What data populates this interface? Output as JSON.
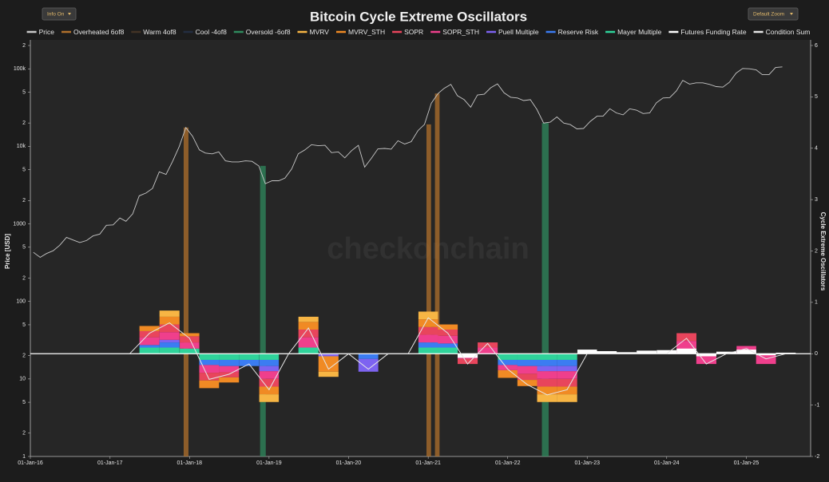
{
  "controls": {
    "info": "Info On",
    "zoom": "Default Zoom"
  },
  "chart_data": {
    "type": "oscillator",
    "title": "Bitcoin Cycle Extreme Oscillators",
    "watermark": "checkonchain",
    "y_label": "Price [USD]",
    "y2_label": "Cycle Extreme Oscillators",
    "grid": false,
    "log_y": true,
    "xlim": [
      "2016-01-01",
      "2025-10-23"
    ],
    "xticks": [
      {
        "value": "2016-01-01",
        "label": "01-Jan-16"
      },
      {
        "value": "2017-01-01",
        "label": "01-Jan-17"
      },
      {
        "value": "2018-01-01",
        "label": "01-Jan-18"
      },
      {
        "value": "2019-01-01",
        "label": "01-Jan-19"
      },
      {
        "value": "2020-01-01",
        "label": "01-Jan-20"
      },
      {
        "value": "2021-01-01",
        "label": "01-Jan-21"
      },
      {
        "value": "2022-01-01",
        "label": "01-Jan-22"
      },
      {
        "value": "2023-01-01",
        "label": "01-Jan-23"
      },
      {
        "value": "2024-01-01",
        "label": "01-Jan-24"
      },
      {
        "value": "2025-01-01",
        "label": "01-Jan-25"
      }
    ],
    "ylim": [
      1,
      200000
    ],
    "yticks": [
      1,
      2,
      5,
      10,
      {
        "value": 20,
        "label": "2"
      },
      {
        "value": 50,
        "label": "5"
      },
      100,
      {
        "value": 200,
        "label": "2"
      },
      {
        "value": 500,
        "label": "5"
      },
      1000,
      {
        "value": 2000,
        "label": "2"
      },
      {
        "value": 5000,
        "label": "5"
      },
      {
        "value": 10000,
        "label": "10k"
      },
      {
        "value": 20000,
        "label": "2"
      },
      {
        "value": 50000,
        "label": "5"
      },
      {
        "value": 100000,
        "label": "100k"
      },
      {
        "value": 200000,
        "label": "2"
      }
    ],
    "y2lim": [
      -2,
      6
    ],
    "y2ticks": [
      -2,
      -1,
      0,
      1,
      2,
      3,
      4,
      5,
      6
    ],
    "x": [
      "2016-01-01",
      "2016-04-01",
      "2016-07-01",
      "2016-10-01",
      "2017-01-01",
      "2017-04-01",
      "2017-07-01",
      "2017-10-01",
      "2018-01-01",
      "2018-04-01",
      "2018-07-01",
      "2018-10-01",
      "2019-01-01",
      "2019-04-01",
      "2019-07-01",
      "2019-10-01",
      "2020-01-01",
      "2020-04-01",
      "2020-07-01",
      "2020-10-01",
      "2021-01-01",
      "2021-04-01",
      "2021-07-01",
      "2021-10-01",
      "2022-01-01",
      "2022-04-01",
      "2022-07-01",
      "2022-10-01",
      "2023-01-01",
      "2023-04-01",
      "2023-07-01",
      "2023-10-01",
      "2024-01-01",
      "2024-04-01",
      "2024-07-01",
      "2024-10-01",
      "2025-01-01",
      "2025-04-01",
      "2025-07-01"
    ],
    "series": [
      {
        "name": "Price",
        "color": "#c8c8c8",
        "style": "line",
        "axis": "y",
        "x": [
          "2016-01-15",
          "2016-02-15",
          "2016-03-15",
          "2016-04-15",
          "2016-05-15",
          "2016-06-15",
          "2016-07-15",
          "2016-08-15",
          "2016-09-15",
          "2016-10-15",
          "2016-11-15",
          "2016-12-15",
          "2017-01-15",
          "2017-02-15",
          "2017-03-15",
          "2017-04-15",
          "2017-05-15",
          "2017-06-15",
          "2017-07-15",
          "2017-08-15",
          "2017-09-15",
          "2017-10-15",
          "2017-11-15",
          "2017-12-15",
          "2018-01-15",
          "2018-02-15",
          "2018-03-15",
          "2018-04-15",
          "2018-05-15",
          "2018-06-15",
          "2018-07-15",
          "2018-08-15",
          "2018-09-15",
          "2018-10-15",
          "2018-11-15",
          "2018-12-15",
          "2019-01-15",
          "2019-02-15",
          "2019-03-15",
          "2019-04-15",
          "2019-05-15",
          "2019-06-15",
          "2019-07-15",
          "2019-08-15",
          "2019-09-15",
          "2019-10-15",
          "2019-11-15",
          "2019-12-15",
          "2020-01-15",
          "2020-02-15",
          "2020-03-15",
          "2020-04-15",
          "2020-05-15",
          "2020-06-15",
          "2020-07-15",
          "2020-08-15",
          "2020-09-15",
          "2020-10-15",
          "2020-11-15",
          "2020-12-15",
          "2021-01-15",
          "2021-02-15",
          "2021-03-15",
          "2021-04-15",
          "2021-05-15",
          "2021-06-15",
          "2021-07-15",
          "2021-08-15",
          "2021-09-15",
          "2021-10-15",
          "2021-11-15",
          "2021-12-15",
          "2022-01-15",
          "2022-02-15",
          "2022-03-15",
          "2022-04-15",
          "2022-05-15",
          "2022-06-15",
          "2022-07-15",
          "2022-08-15",
          "2022-09-15",
          "2022-10-15",
          "2022-11-15",
          "2022-12-15",
          "2023-01-15",
          "2023-02-15",
          "2023-03-15",
          "2023-04-15",
          "2023-05-15",
          "2023-06-15",
          "2023-07-15",
          "2023-08-15",
          "2023-09-15",
          "2023-10-15",
          "2023-11-15",
          "2023-12-15",
          "2024-01-15",
          "2024-02-15",
          "2024-03-15",
          "2024-04-15",
          "2024-05-15",
          "2024-06-15",
          "2024-07-15",
          "2024-08-15",
          "2024-09-15",
          "2024-10-15",
          "2024-11-15",
          "2024-12-15",
          "2025-01-15",
          "2025-02-15",
          "2025-03-15",
          "2025-04-15",
          "2025-05-15",
          "2025-06-15"
        ],
        "values": [
          430,
          370,
          415,
          450,
          530,
          670,
          620,
          575,
          610,
          700,
          740,
          960,
          970,
          1190,
          1080,
          1350,
          2300,
          2500,
          2870,
          4700,
          4340,
          6400,
          10000,
          17500,
          13500,
          9000,
          8200,
          8000,
          8500,
          6500,
          6300,
          6300,
          6500,
          6400,
          5600,
          3300,
          3600,
          3600,
          3900,
          5100,
          8000,
          9000,
          10500,
          10200,
          10300,
          8300,
          8500,
          7100,
          8800,
          10300,
          5400,
          7000,
          9300,
          9400,
          9200,
          11800,
          10700,
          11500,
          16000,
          19200,
          36000,
          48000,
          56000,
          63000,
          45000,
          40000,
          32000,
          46000,
          47000,
          57000,
          64000,
          49000,
          43000,
          42000,
          39000,
          40000,
          30000,
          20000,
          20500,
          24000,
          20000,
          19100,
          16800,
          17000,
          21000,
          24500,
          24500,
          30500,
          27000,
          25500,
          30500,
          29300,
          26500,
          27000,
          36500,
          42000,
          42500,
          52000,
          71000,
          63500,
          66000,
          66000,
          63000,
          59000,
          58000,
          67000,
          88000,
          101000,
          100000,
          97000,
          84000,
          84000,
          104000,
          106000
        ]
      },
      {
        "name": "Overheated 6of8",
        "color": "#b0702c",
        "style": "band",
        "periods": [
          [
            "2017-12-05",
            "2017-12-27"
          ],
          [
            "2020-12-24",
            "2021-01-14"
          ],
          [
            "2021-02-01",
            "2021-02-22"
          ]
        ]
      },
      {
        "name": "Warm 4of8",
        "color": "#6b4a2e",
        "style": "band",
        "visible": false
      },
      {
        "name": "Cool -4of8",
        "color": "#2a3f66",
        "style": "band",
        "visible": false
      },
      {
        "name": "Oversold -6of8",
        "color": "#2f8a5e",
        "style": "band",
        "periods": [
          [
            "2018-11-21",
            "2018-12-17"
          ],
          [
            "2022-06-07",
            "2022-07-08"
          ]
        ]
      },
      {
        "name": "MVRV",
        "color": "#f7b544",
        "style": "stack",
        "axis": "y2",
        "values": [
          0,
          0,
          0,
          0,
          0,
          0,
          0,
          0.12,
          0,
          0,
          0,
          0,
          -0.15,
          0,
          0.1,
          -0.1,
          0,
          0,
          0,
          0,
          0.15,
          0,
          0,
          0,
          0,
          0,
          -0.15,
          -0.15,
          0,
          0,
          0,
          0,
          0,
          0,
          0,
          0,
          0,
          0,
          0
        ]
      },
      {
        "name": "MVRV_STH",
        "color": "#f08a24",
        "style": "stack",
        "axis": "y2",
        "values": [
          0,
          0,
          0,
          0,
          0,
          0,
          0.1,
          0.15,
          0.06,
          -0.15,
          -0.1,
          0,
          -0.15,
          0,
          0.15,
          -0.3,
          0,
          0,
          0,
          0,
          0.15,
          0.1,
          0,
          0,
          -0.15,
          -0.12,
          -0.15,
          -0.15,
          0,
          0,
          0,
          0,
          0,
          0,
          0,
          0,
          0,
          0,
          0
        ]
      },
      {
        "name": "SOPR",
        "color": "#e8455c",
        "style": "stack",
        "axis": "y2",
        "values": [
          0,
          0,
          0,
          0,
          0,
          0,
          0.12,
          0.15,
          0.12,
          -0.15,
          -0.1,
          0,
          -0.15,
          0,
          0.15,
          0,
          0,
          0,
          0,
          0,
          0.15,
          0.12,
          -0.1,
          0.1,
          0,
          -0.12,
          -0.15,
          -0.15,
          0,
          0,
          0,
          0,
          0,
          0.15,
          0,
          0,
          0,
          0,
          0
        ]
      },
      {
        "name": "SOPR_STH",
        "color": "#ef3f8c",
        "style": "stack",
        "axis": "y2",
        "values": [
          0,
          0,
          0,
          0,
          0,
          0,
          0.15,
          0.15,
          0.12,
          -0.15,
          -0.12,
          0,
          -0.15,
          0,
          0.2,
          0,
          0,
          0,
          0,
          0,
          0.15,
          0.15,
          -0.1,
          0.12,
          -0.1,
          -0.15,
          -0.15,
          -0.15,
          0,
          0,
          0,
          0,
          0,
          0.25,
          -0.2,
          0,
          0.15,
          -0.2,
          0
        ]
      },
      {
        "name": "Puell Multiple",
        "color": "#7d63f0",
        "style": "stack",
        "axis": "y2",
        "values": [
          0,
          0,
          0,
          0,
          0,
          0,
          0,
          0.05,
          0,
          0,
          0,
          0,
          -0.1,
          0,
          0,
          -0.05,
          0,
          -0.25,
          0,
          0,
          0,
          0,
          0,
          0,
          0,
          0,
          -0.1,
          -0.1,
          0,
          0,
          0,
          0,
          0,
          0,
          0,
          0,
          0,
          0,
          0
        ]
      },
      {
        "name": "Reserve Risk",
        "color": "#3b7cf2",
        "style": "stack",
        "axis": "y2",
        "values": [
          0,
          0,
          0,
          0,
          0,
          0,
          0.05,
          0.1,
          0,
          -0.1,
          -0.12,
          -0.12,
          -0.12,
          0,
          0,
          0,
          0,
          -0.1,
          0,
          0,
          0.1,
          0.08,
          0,
          0,
          -0.1,
          -0.12,
          -0.12,
          -0.12,
          0,
          0,
          0,
          0,
          0,
          0,
          0,
          0,
          0,
          0,
          0
        ]
      },
      {
        "name": "Mayer Multiple",
        "color": "#2fd39a",
        "style": "stack",
        "axis": "y2",
        "values": [
          0,
          0,
          0,
          0,
          0,
          0,
          0.12,
          0.12,
          0.1,
          -0.12,
          -0.12,
          -0.12,
          -0.12,
          0,
          0.12,
          0,
          0,
          0,
          0,
          0,
          0.12,
          0.12,
          0,
          0,
          -0.12,
          -0.12,
          -0.12,
          -0.12,
          0,
          0,
          0,
          0,
          0,
          0,
          0,
          0,
          0,
          0,
          0
        ]
      },
      {
        "name": "Futures Funding Rate",
        "color": "#ffffff",
        "style": "area",
        "axis": "y2",
        "values": [
          0,
          0,
          0,
          0,
          0,
          0,
          0,
          0,
          0,
          0,
          0,
          0,
          0,
          0,
          0,
          0,
          0,
          0,
          0,
          0,
          0,
          0,
          -0.08,
          0,
          0,
          0,
          0,
          0,
          0.08,
          0.05,
          0.03,
          0.06,
          0.07,
          0.1,
          -0.05,
          0.04,
          0.08,
          -0.03,
          0.02
        ]
      },
      {
        "name": "Condition Sum",
        "color": "#e6e6e6",
        "style": "line",
        "axis": "y2",
        "values": [
          0,
          0,
          0,
          0,
          0,
          0,
          0.4,
          0.6,
          0.3,
          -0.5,
          -0.4,
          -0.2,
          -0.7,
          0,
          0.5,
          -0.3,
          0,
          -0.3,
          0,
          0,
          0.7,
          0.4,
          -0.2,
          0.2,
          -0.3,
          -0.6,
          -0.8,
          -0.7,
          0,
          0,
          0,
          0,
          0,
          0.3,
          -0.2,
          0,
          0.1,
          -0.1,
          0
        ]
      }
    ]
  }
}
